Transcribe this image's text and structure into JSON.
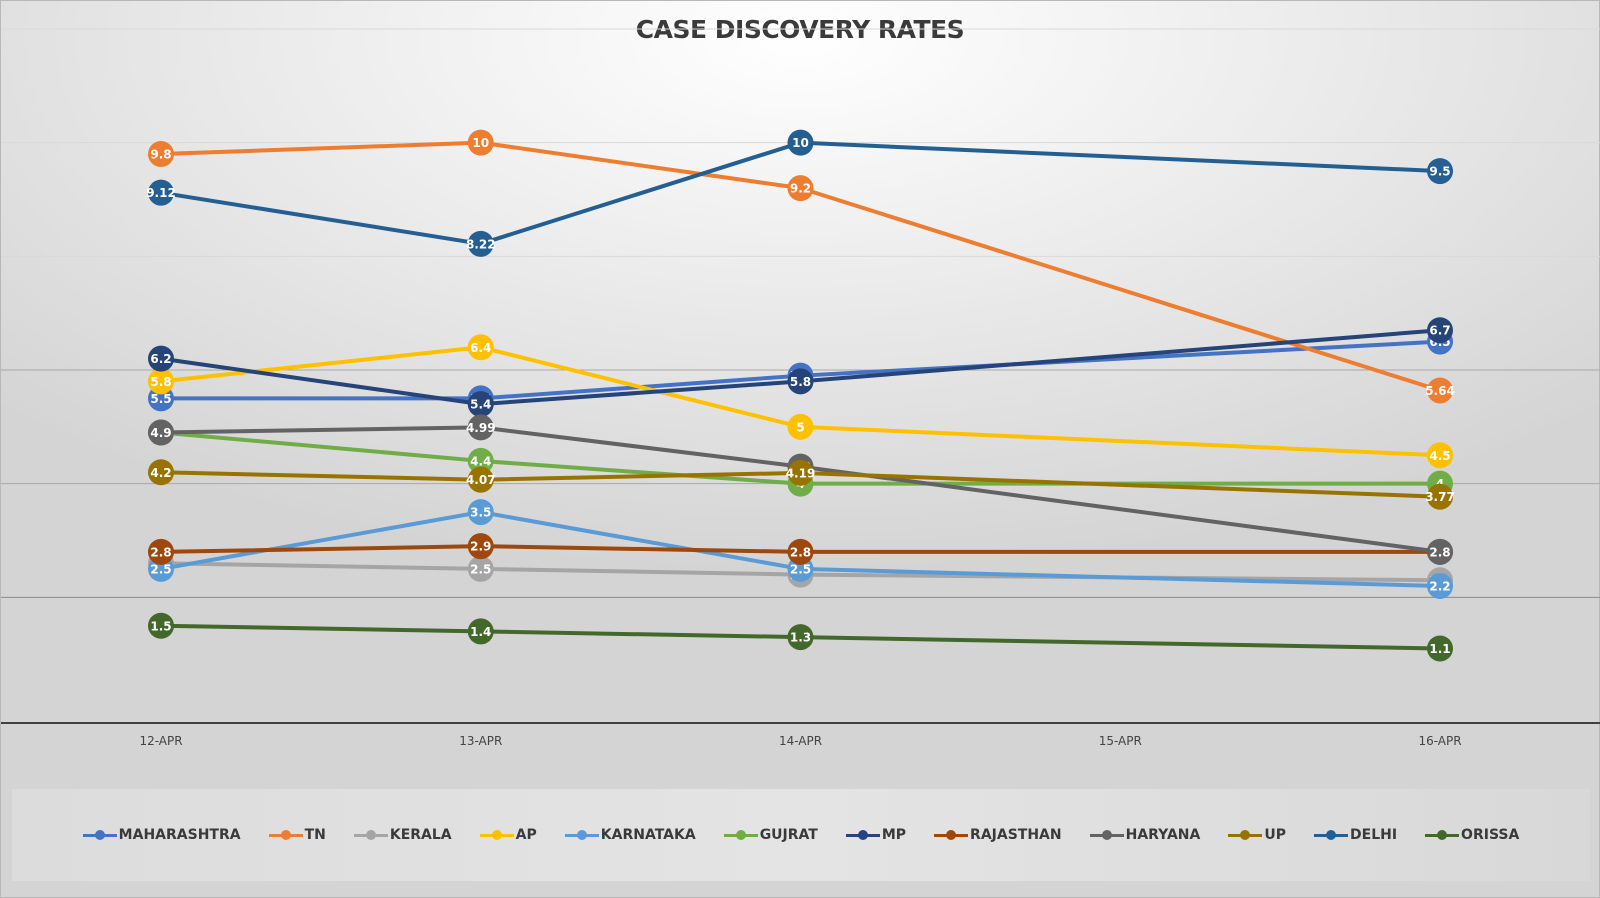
{
  "chart_data": {
    "type": "line",
    "title": "CASE DISCOVERY RATES",
    "xlabel": "",
    "ylabel": "",
    "categories": [
      "12-APR",
      "13-APR",
      "14-APR",
      "15-APR",
      "16-APR"
    ],
    "ylim": [
      0,
      12
    ],
    "y_gridlines": [
      0,
      2,
      4,
      6,
      8,
      10,
      12
    ],
    "y_tick_labels_shown": false,
    "grid": true,
    "legend_position": "bottom",
    "data_labels": true,
    "series": [
      {
        "name": "MAHARASHTRA",
        "color": "#4472C4",
        "values": [
          5.5,
          5.5,
          5.9,
          null,
          6.5
        ]
      },
      {
        "name": "TN",
        "color": "#ED7D31",
        "values": [
          9.8,
          10,
          9.2,
          null,
          5.64
        ]
      },
      {
        "name": "KERALA",
        "color": "#A5A5A5",
        "values": [
          2.6,
          2.5,
          2.4,
          null,
          2.3
        ]
      },
      {
        "name": "AP",
        "color": "#FFC000",
        "values": [
          5.8,
          6.4,
          5,
          null,
          4.5
        ]
      },
      {
        "name": "KARNATAKA",
        "color": "#5B9BD5",
        "values": [
          2.5,
          3.5,
          2.5,
          null,
          2.2
        ]
      },
      {
        "name": "GUJRAT",
        "color": "#70AD47",
        "values": [
          4.9,
          4.4,
          4,
          null,
          4
        ]
      },
      {
        "name": "MP",
        "color": "#264478",
        "values": [
          6.2,
          5.4,
          5.8,
          null,
          6.7
        ]
      },
      {
        "name": "RAJASTHAN",
        "color": "#9E480E",
        "values": [
          2.8,
          2.9,
          2.8,
          null,
          2.8
        ]
      },
      {
        "name": "HARYANA",
        "color": "#636363",
        "values": [
          4.9,
          4.99,
          4.3,
          null,
          2.8
        ]
      },
      {
        "name": "UP",
        "color": "#997300",
        "values": [
          4.2,
          4.07,
          4.19,
          null,
          3.77
        ]
      },
      {
        "name": "DELHI",
        "color": "#255E91",
        "values": [
          9.12,
          8.22,
          10,
          null,
          9.5
        ]
      },
      {
        "name": "ORISSA",
        "color": "#43682B",
        "values": [
          1.5,
          1.4,
          1.3,
          null,
          1.1
        ]
      }
    ]
  }
}
